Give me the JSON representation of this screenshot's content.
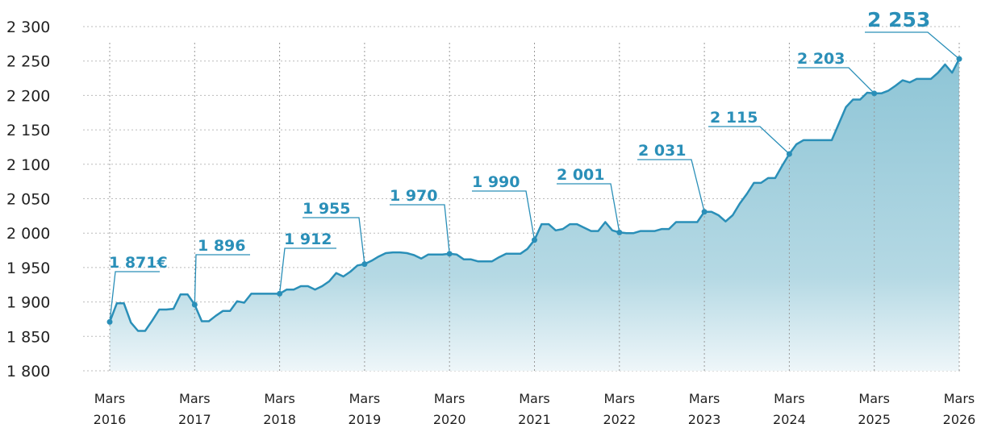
{
  "chart_data": {
    "type": "area",
    "color": "#2a8fb8",
    "grid": true,
    "ylim": [
      1800,
      2300
    ],
    "yticks": [
      {
        "value": 1800,
        "label": "1 800"
      },
      {
        "value": 1850,
        "label": "1 850"
      },
      {
        "value": 1900,
        "label": "1 900"
      },
      {
        "value": 1950,
        "label": "1 950"
      },
      {
        "value": 2000,
        "label": "2 000"
      },
      {
        "value": 2050,
        "label": "2 050"
      },
      {
        "value": 2100,
        "label": "2 100"
      },
      {
        "value": 2150,
        "label": "2 150"
      },
      {
        "value": 2200,
        "label": "2 200"
      },
      {
        "value": 2250,
        "label": "2 250"
      },
      {
        "value": 2300,
        "label": "2 300"
      }
    ],
    "xticks": [
      {
        "value": "2016-03",
        "label": "Mars 2016"
      },
      {
        "value": "2017-03",
        "label": "Mars 2017"
      },
      {
        "value": "2018-03",
        "label": "Mars 2018"
      },
      {
        "value": "2019-03",
        "label": "Mars 2019"
      },
      {
        "value": "2020-03",
        "label": "Mars 2020"
      },
      {
        "value": "2021-03",
        "label": "Mars 2021"
      },
      {
        "value": "2022-03",
        "label": "Mars 2022"
      },
      {
        "value": "2023-03",
        "label": "Mars 2023"
      },
      {
        "value": "2024-03",
        "label": "Mars 2024"
      },
      {
        "value": "2025-03",
        "label": "Mars 2025"
      },
      {
        "value": "2026-03",
        "label": "Mars 2026"
      }
    ],
    "x": [
      "2016-03",
      "2016-04",
      "2016-05",
      "2016-06",
      "2016-07",
      "2016-08",
      "2016-09",
      "2016-10",
      "2016-11",
      "2016-12",
      "2017-01",
      "2017-02",
      "2017-03",
      "2017-04",
      "2017-05",
      "2017-06",
      "2017-07",
      "2017-08",
      "2017-09",
      "2017-10",
      "2017-11",
      "2017-12",
      "2018-01",
      "2018-02",
      "2018-03",
      "2018-04",
      "2018-05",
      "2018-06",
      "2018-07",
      "2018-08",
      "2018-09",
      "2018-10",
      "2018-11",
      "2018-12",
      "2019-01",
      "2019-02",
      "2019-03",
      "2019-04",
      "2019-05",
      "2019-06",
      "2019-07",
      "2019-08",
      "2019-09",
      "2019-10",
      "2019-11",
      "2019-12",
      "2020-01",
      "2020-02",
      "2020-03",
      "2020-04",
      "2020-05",
      "2020-06",
      "2020-07",
      "2020-08",
      "2020-09",
      "2020-10",
      "2020-11",
      "2020-12",
      "2021-01",
      "2021-02",
      "2021-03",
      "2021-04",
      "2021-05",
      "2021-06",
      "2021-07",
      "2021-08",
      "2021-09",
      "2021-10",
      "2021-11",
      "2021-12",
      "2022-01",
      "2022-02",
      "2022-03",
      "2022-04",
      "2022-05",
      "2022-06",
      "2022-07",
      "2022-08",
      "2022-09",
      "2022-10",
      "2022-11",
      "2022-12",
      "2023-01",
      "2023-02",
      "2023-03",
      "2023-04",
      "2023-05",
      "2023-06",
      "2023-07",
      "2023-08",
      "2023-09",
      "2023-10",
      "2023-11",
      "2023-12",
      "2024-01",
      "2024-02",
      "2024-03",
      "2024-04",
      "2024-05",
      "2024-06",
      "2024-07",
      "2024-08",
      "2024-09",
      "2024-10",
      "2024-11",
      "2024-12",
      "2025-01",
      "2025-02",
      "2025-03",
      "2025-04",
      "2025-05",
      "2025-06",
      "2025-07",
      "2025-08",
      "2025-09",
      "2025-10",
      "2025-11",
      "2025-12",
      "2026-01",
      "2026-02",
      "2026-03"
    ],
    "values": [
      1871,
      1898,
      1898,
      1870,
      1858,
      1858,
      1873,
      1889,
      1889,
      1890,
      1911,
      1911,
      1896,
      1872,
      1872,
      1880,
      1887,
      1887,
      1901,
      1899,
      1912,
      1912,
      1912,
      1912,
      1912,
      1918,
      1918,
      1923,
      1923,
      1918,
      1923,
      1930,
      1942,
      1937,
      1944,
      1953,
      1955,
      1960,
      1966,
      1971,
      1972,
      1972,
      1971,
      1968,
      1963,
      1969,
      1969,
      1969,
      1970,
      1969,
      1962,
      1962,
      1959,
      1959,
      1959,
      1965,
      1970,
      1970,
      1970,
      1977,
      1990,
      2013,
      2013,
      2004,
      2006,
      2013,
      2013,
      2008,
      2003,
      2003,
      2016,
      2004,
      2001,
      2000,
      2000,
      2003,
      2003,
      2003,
      2006,
      2006,
      2016,
      2016,
      2016,
      2016,
      2031,
      2031,
      2026,
      2017,
      2026,
      2043,
      2057,
      2073,
      2073,
      2080,
      2080,
      2098,
      2115,
      2129,
      2135,
      2135,
      2135,
      2135,
      2135,
      2159,
      2183,
      2194,
      2194,
      2204,
      2203,
      2203,
      2207,
      2214,
      2222,
      2219,
      2224,
      2224,
      2224,
      2233,
      2245,
      2233,
      2253
    ],
    "annotations": [
      {
        "x": "2016-03",
        "value": 1871,
        "label": "1 871€"
      },
      {
        "x": "2017-03",
        "value": 1896,
        "label": "1 896"
      },
      {
        "x": "2018-03",
        "value": 1912,
        "label": "1 912"
      },
      {
        "x": "2019-03",
        "value": 1955,
        "label": "1 955"
      },
      {
        "x": "2020-03",
        "value": 1970,
        "label": "1 970"
      },
      {
        "x": "2021-03",
        "value": 1990,
        "label": "1 990"
      },
      {
        "x": "2022-03",
        "value": 2001,
        "label": "2 001"
      },
      {
        "x": "2023-03",
        "value": 2031,
        "label": "2 031"
      },
      {
        "x": "2024-03",
        "value": 2115,
        "label": "2 115"
      },
      {
        "x": "2025-03",
        "value": 2203,
        "label": "2 203"
      },
      {
        "x": "2026-03",
        "value": 2253,
        "label": "2 253"
      }
    ]
  }
}
